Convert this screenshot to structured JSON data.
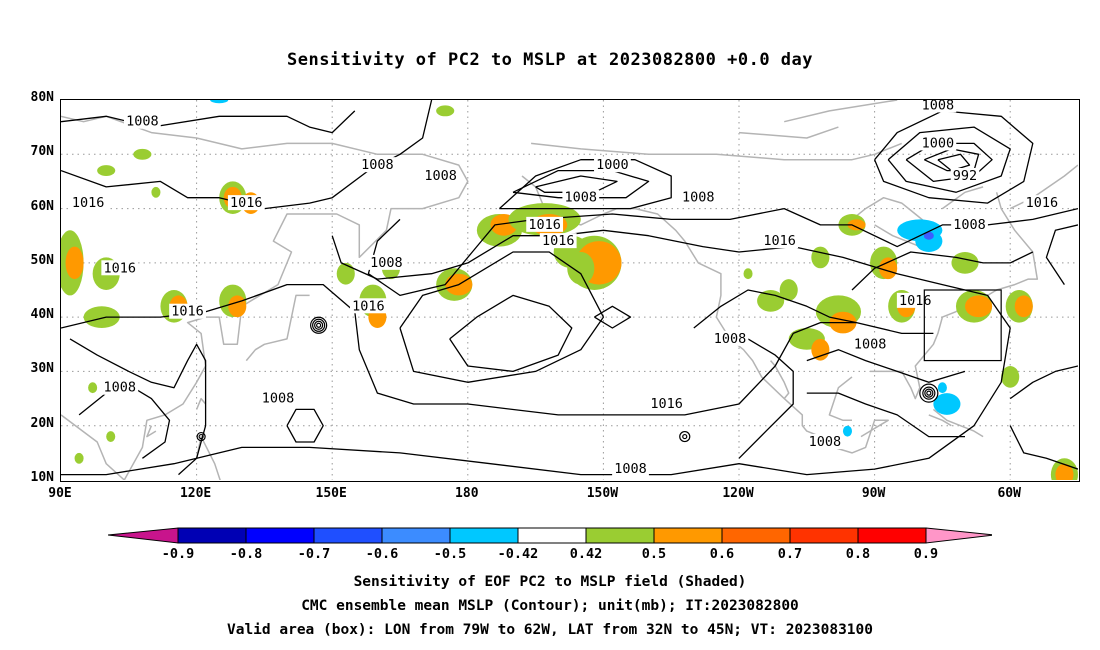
{
  "title": "Sensitivity of PC2 to MSLP at 2023082800 +0.0 day",
  "map": {
    "lat_labels": [
      "80N",
      "70N",
      "60N",
      "50N",
      "40N",
      "30N",
      "20N",
      "10N"
    ],
    "lon_labels": [
      "90E",
      "120E",
      "150E",
      "180",
      "150W",
      "120W",
      "90W",
      "60W"
    ],
    "extent": {
      "lon_min": 90,
      "lon_max": 315,
      "lat_min": 10,
      "lat_max": 80
    },
    "contour_labels": [
      {
        "text": "1008",
        "lon": 108,
        "lat": 76
      },
      {
        "text": "1008",
        "lon": 160,
        "lat": 68
      },
      {
        "text": "1008",
        "lon": 174,
        "lat": 66
      },
      {
        "text": "1000",
        "lon": 212,
        "lat": 68
      },
      {
        "text": "1008",
        "lon": 205,
        "lat": 62
      },
      {
        "text": "1008",
        "lon": 231,
        "lat": 62
      },
      {
        "text": "1008",
        "lon": 284,
        "lat": 79
      },
      {
        "text": "1000",
        "lon": 284,
        "lat": 72
      },
      {
        "text": "992",
        "lon": 290,
        "lat": 66
      },
      {
        "text": "1016",
        "lon": 96,
        "lat": 61
      },
      {
        "text": "1016",
        "lon": 131,
        "lat": 61
      },
      {
        "text": "1016",
        "lon": 307,
        "lat": 61
      },
      {
        "text": "1008",
        "lon": 291,
        "lat": 57
      },
      {
        "text": "1016",
        "lon": 197,
        "lat": 57
      },
      {
        "text": "1016",
        "lon": 200,
        "lat": 54
      },
      {
        "text": "1016",
        "lon": 249,
        "lat": 54
      },
      {
        "text": "1008",
        "lon": 162,
        "lat": 50
      },
      {
        "text": "1016",
        "lon": 103,
        "lat": 49
      },
      {
        "text": "1016",
        "lon": 118,
        "lat": 41
      },
      {
        "text": "1016",
        "lon": 158,
        "lat": 42
      },
      {
        "text": "1016",
        "lon": 279,
        "lat": 43
      },
      {
        "text": "1008",
        "lon": 238,
        "lat": 36
      },
      {
        "text": "1008",
        "lon": 269,
        "lat": 35
      },
      {
        "text": "1008",
        "lon": 103,
        "lat": 27
      },
      {
        "text": "1008",
        "lon": 138,
        "lat": 25
      },
      {
        "text": "1016",
        "lon": 224,
        "lat": 24
      },
      {
        "text": "1008",
        "lon": 259,
        "lat": 17
      },
      {
        "text": "1008",
        "lon": 216,
        "lat": 12
      }
    ],
    "valid_box": {
      "lon_min": 281,
      "lon_max": 298,
      "lat_min": 32,
      "lat_max": 45
    }
  },
  "colorbar": {
    "labels": [
      "-0.9",
      "-0.8",
      "-0.7",
      "-0.6",
      "-0.5",
      "-0.42",
      "0.42",
      "0.5",
      "0.6",
      "0.7",
      "0.8",
      "0.9"
    ],
    "colors": [
      "#0000b4",
      "#0000ff",
      "#1f4fff",
      "#3c8cff",
      "#00c8ff",
      "#ffffff",
      "#9acd32",
      "#ff9900",
      "#ff6600",
      "#ff3300",
      "#ff0000"
    ],
    "low_end_color": "#c8148c",
    "high_end_color": "#ff96c8"
  },
  "captions": [
    "Sensitivity of EOF PC2 to MSLP field (Shaded)",
    "CMC ensemble mean MSLP (Contour); unit(mb); IT:2023082800",
    "Valid area (box): LON from 79W to 62W, LAT from 32N to 45N; VT: 2023083100"
  ]
}
